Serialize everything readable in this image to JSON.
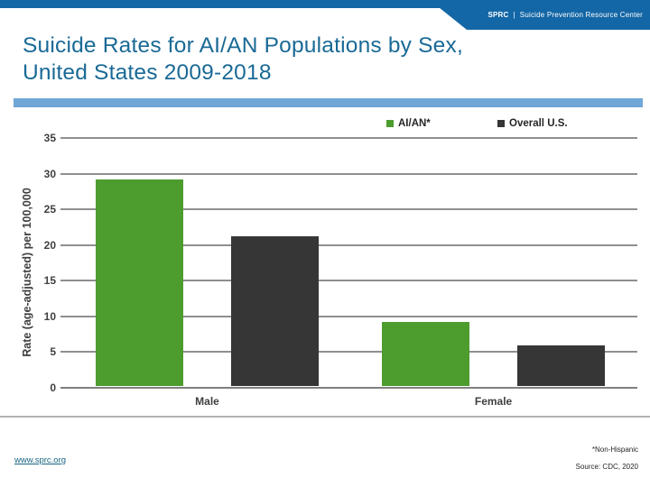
{
  "slide": {
    "header": {
      "brand": "SPRC",
      "separator": "|",
      "org_name": "Suicide Prevention Resource Center"
    },
    "title": {
      "line1": "Suicide Rates for AI/AN Populations by Sex,",
      "line2": "United States 2009-2018"
    },
    "footer": {
      "link": "www.sprc.org",
      "footnote": "*Non-Hispanic",
      "source": "Source: CDC, 2020"
    }
  },
  "colors": {
    "header_blue": "#1467A6",
    "title_blue": "#1A6A96",
    "divider_blue": "#6FA7D6",
    "aian_green": "#4D9C2E",
    "overall_dark": "#363636",
    "grid_gray": "#8F8F8F",
    "axis_text": "#3F3F3F",
    "link_teal": "#17657F"
  },
  "chart_data": {
    "type": "bar",
    "title": "",
    "categories": [
      "Male",
      "Female"
    ],
    "series": [
      {
        "name": "AI/AN*",
        "color": "#4D9C2E",
        "values": [
          29,
          9
        ]
      },
      {
        "name": "Overall U.S.",
        "color": "#363636",
        "values": [
          21,
          5.7
        ]
      }
    ],
    "xlabel": "",
    "ylabel": "Rate (age-adjusted) per 100,000",
    "ylim": [
      0,
      35
    ],
    "yticks": [
      0,
      5,
      10,
      15,
      20,
      25,
      30,
      35
    ],
    "grid": true,
    "legend_position": "top-right"
  }
}
